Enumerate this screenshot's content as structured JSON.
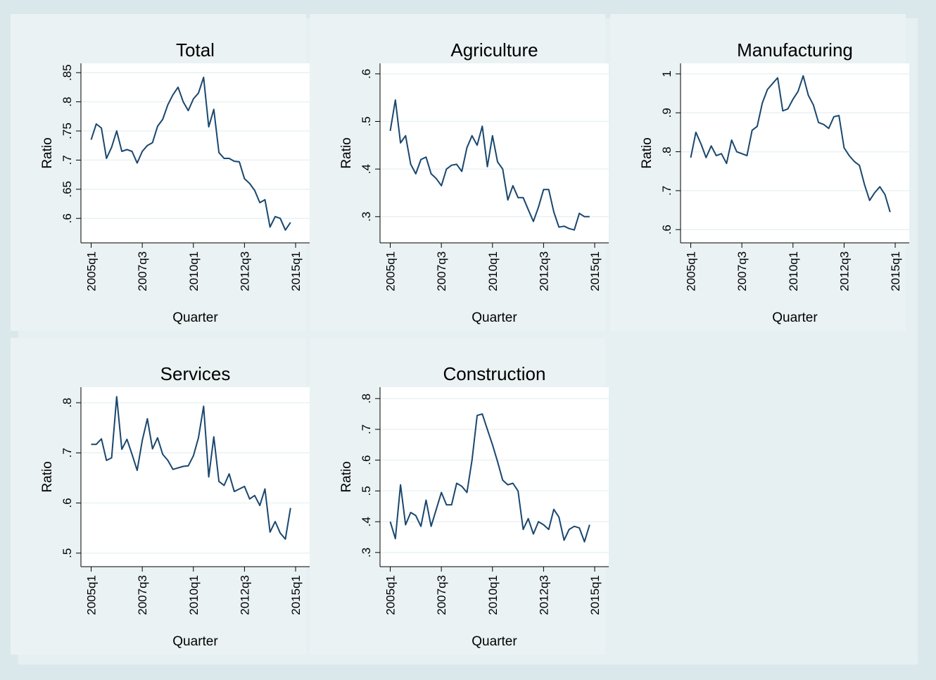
{
  "chart_data": [
    {
      "type": "line",
      "title": "Total",
      "xlabel": "Quarter",
      "ylabel": "Ratio",
      "color": "#1a476f",
      "grid": true,
      "x": [
        0,
        1,
        2,
        3,
        4,
        5,
        6,
        7,
        8,
        9,
        10,
        11,
        12,
        13,
        14,
        15,
        16,
        17,
        18,
        19,
        20,
        21,
        22,
        23,
        24,
        25,
        26,
        27,
        28,
        29,
        30,
        31,
        32,
        33,
        34,
        35,
        36,
        37,
        38,
        39
      ],
      "values": [
        0.735,
        0.762,
        0.755,
        0.703,
        0.722,
        0.75,
        0.715,
        0.718,
        0.715,
        0.695,
        0.715,
        0.725,
        0.73,
        0.758,
        0.77,
        0.795,
        0.812,
        0.825,
        0.8,
        0.785,
        0.805,
        0.815,
        0.842,
        0.757,
        0.787,
        0.713,
        0.703,
        0.703,
        0.698,
        0.697,
        0.668,
        0.66,
        0.648,
        0.627,
        0.632,
        0.585,
        0.603,
        0.6,
        0.58,
        0.593
      ],
      "xlim": [
        -2,
        42.75
      ],
      "xticks": [
        {
          "value": 0,
          "label": "2005q1"
        },
        {
          "value": 10,
          "label": "2007q3"
        },
        {
          "value": 20,
          "label": "2010q1"
        },
        {
          "value": 30,
          "label": "2012q3"
        },
        {
          "value": 40,
          "label": "2015q1"
        }
      ],
      "ylim": [
        0.558,
        0.866
      ],
      "yticks": [
        {
          "value": 0.6,
          "label": ".6"
        },
        {
          "value": 0.65,
          "label": ".65"
        },
        {
          "value": 0.7,
          "label": ".7"
        },
        {
          "value": 0.75,
          "label": ".75"
        },
        {
          "value": 0.8,
          "label": ".8"
        },
        {
          "value": 0.85,
          "label": ".85"
        }
      ]
    },
    {
      "type": "line",
      "title": "Agriculture",
      "xlabel": "Quarter",
      "ylabel": "Ratio",
      "color": "#1a476f",
      "grid": true,
      "x": [
        0,
        1,
        2,
        3,
        4,
        5,
        6,
        7,
        8,
        9,
        10,
        11,
        12,
        13,
        14,
        15,
        16,
        17,
        18,
        19,
        20,
        21,
        22,
        23,
        24,
        25,
        26,
        27,
        28,
        29,
        30,
        31,
        32,
        33,
        34,
        35,
        36,
        37,
        38,
        39
      ],
      "values": [
        0.48,
        0.545,
        0.455,
        0.47,
        0.41,
        0.39,
        0.42,
        0.425,
        0.39,
        0.38,
        0.365,
        0.4,
        0.408,
        0.41,
        0.395,
        0.445,
        0.47,
        0.45,
        0.49,
        0.405,
        0.47,
        0.415,
        0.4,
        0.335,
        0.365,
        0.34,
        0.34,
        0.315,
        0.29,
        0.32,
        0.357,
        0.357,
        0.31,
        0.278,
        0.28,
        0.275,
        0.272,
        0.307,
        0.3,
        0.3
      ],
      "xlim": [
        -2,
        42.75
      ],
      "xticks": [
        {
          "value": 0,
          "label": "2005q1"
        },
        {
          "value": 10,
          "label": "2007q3"
        },
        {
          "value": 20,
          "label": "2010q1"
        },
        {
          "value": 30,
          "label": "2012q3"
        },
        {
          "value": 40,
          "label": "2015q1"
        }
      ],
      "ylim": [
        0.245,
        0.622
      ],
      "yticks": [
        {
          "value": 0.3,
          "label": ".3"
        },
        {
          "value": 0.4,
          "label": ".4"
        },
        {
          "value": 0.5,
          "label": ".5"
        },
        {
          "value": 0.6,
          "label": ".6"
        }
      ]
    },
    {
      "type": "line",
      "title": "Manufacturing",
      "xlabel": "Quarter",
      "ylabel": "Ratio",
      "color": "#1a476f",
      "grid": true,
      "x": [
        0,
        1,
        2,
        3,
        4,
        5,
        6,
        7,
        8,
        9,
        10,
        11,
        12,
        13,
        14,
        15,
        16,
        17,
        18,
        19,
        20,
        21,
        22,
        23,
        24,
        25,
        26,
        27,
        28,
        29,
        30,
        31,
        32,
        33,
        34,
        35,
        36,
        37,
        38,
        39
      ],
      "values": [
        0.785,
        0.85,
        0.82,
        0.785,
        0.815,
        0.79,
        0.795,
        0.77,
        0.83,
        0.8,
        0.795,
        0.79,
        0.855,
        0.865,
        0.925,
        0.96,
        0.975,
        0.99,
        0.905,
        0.91,
        0.935,
        0.955,
        0.995,
        0.945,
        0.92,
        0.875,
        0.87,
        0.86,
        0.89,
        0.893,
        0.81,
        0.79,
        0.775,
        0.765,
        0.715,
        0.675,
        0.695,
        0.71,
        0.69,
        0.645
      ],
      "xlim": [
        -2,
        42.75
      ],
      "xticks": [
        {
          "value": 0,
          "label": "2005q1"
        },
        {
          "value": 10,
          "label": "2007q3"
        },
        {
          "value": 20,
          "label": "2010q1"
        },
        {
          "value": 30,
          "label": "2012q3"
        },
        {
          "value": 40,
          "label": "2015q1"
        }
      ],
      "ylim": [
        0.566,
        1.027
      ],
      "yticks": [
        {
          "value": 0.6,
          "label": ".6"
        },
        {
          "value": 0.7,
          "label": ".7"
        },
        {
          "value": 0.8,
          "label": ".8"
        },
        {
          "value": 0.9,
          "label": ".9"
        },
        1
      ]
    },
    {
      "type": "line",
      "title": "Services",
      "xlabel": "Quarter",
      "ylabel": "Ratio",
      "color": "#1a476f",
      "grid": true,
      "x": [
        0,
        1,
        2,
        3,
        4,
        5,
        6,
        7,
        8,
        9,
        10,
        11,
        12,
        13,
        14,
        15,
        16,
        17,
        18,
        19,
        20,
        21,
        22,
        23,
        24,
        25,
        26,
        27,
        28,
        29,
        30,
        31,
        32,
        33,
        34,
        35,
        36,
        37,
        38,
        39
      ],
      "values": [
        0.717,
        0.717,
        0.728,
        0.685,
        0.69,
        0.812,
        0.707,
        0.727,
        0.697,
        0.665,
        0.725,
        0.768,
        0.708,
        0.73,
        0.697,
        0.685,
        0.667,
        0.67,
        0.673,
        0.674,
        0.694,
        0.73,
        0.793,
        0.652,
        0.732,
        0.643,
        0.635,
        0.658,
        0.623,
        0.628,
        0.633,
        0.608,
        0.615,
        0.595,
        0.628,
        0.542,
        0.563,
        0.54,
        0.528,
        0.59
      ],
      "xlim": [
        -2,
        42.75
      ],
      "xticks": [
        {
          "value": 0,
          "label": "2005q1"
        },
        {
          "value": 10,
          "label": "2007q3"
        },
        {
          "value": 20,
          "label": "2010q1"
        },
        {
          "value": 30,
          "label": "2012q3"
        },
        {
          "value": 40,
          "label": "2015q1"
        }
      ],
      "ylim": [
        0.473,
        0.831
      ],
      "yticks": [
        {
          "value": 0.5,
          "label": ".5"
        },
        {
          "value": 0.6,
          "label": ".6"
        },
        {
          "value": 0.7,
          "label": ".7"
        },
        {
          "value": 0.8,
          "label": ".8"
        }
      ]
    },
    {
      "type": "line",
      "title": "Construction",
      "xlabel": "Quarter",
      "ylabel": "Ratio",
      "color": "#1a476f",
      "grid": true,
      "x": [
        0,
        1,
        2,
        3,
        4,
        5,
        6,
        7,
        8,
        9,
        10,
        11,
        12,
        13,
        14,
        15,
        16,
        17,
        18,
        19,
        20,
        21,
        22,
        23,
        24,
        25,
        26,
        27,
        28,
        29,
        30,
        31,
        32,
        33,
        34,
        35,
        36,
        37,
        38,
        39
      ],
      "values": [
        0.4,
        0.345,
        0.52,
        0.39,
        0.43,
        0.42,
        0.385,
        0.47,
        0.385,
        0.44,
        0.495,
        0.455,
        0.455,
        0.525,
        0.515,
        0.495,
        0.6,
        0.745,
        0.75,
        0.7,
        0.65,
        0.595,
        0.535,
        0.52,
        0.525,
        0.5,
        0.375,
        0.41,
        0.36,
        0.4,
        0.39,
        0.375,
        0.44,
        0.415,
        0.34,
        0.375,
        0.385,
        0.38,
        0.335,
        0.39
      ],
      "xlim": [
        -2,
        42.75
      ],
      "xticks": [
        {
          "value": 0,
          "label": "2005q1"
        },
        {
          "value": 10,
          "label": "2007q3"
        },
        {
          "value": 20,
          "label": "2010q1"
        },
        {
          "value": 30,
          "label": "2012q3"
        },
        {
          "value": 40,
          "label": "2015q1"
        }
      ],
      "ylim": [
        0.254,
        0.837
      ],
      "yticks": [
        {
          "value": 0.3,
          "label": ".3"
        },
        {
          "value": 0.4,
          "label": ".4"
        },
        {
          "value": 0.5,
          "label": ".5"
        },
        {
          "value": 0.6,
          "label": ".6"
        },
        {
          "value": 0.7,
          "label": ".7"
        },
        {
          "value": 0.8,
          "label": ".8"
        }
      ]
    }
  ]
}
